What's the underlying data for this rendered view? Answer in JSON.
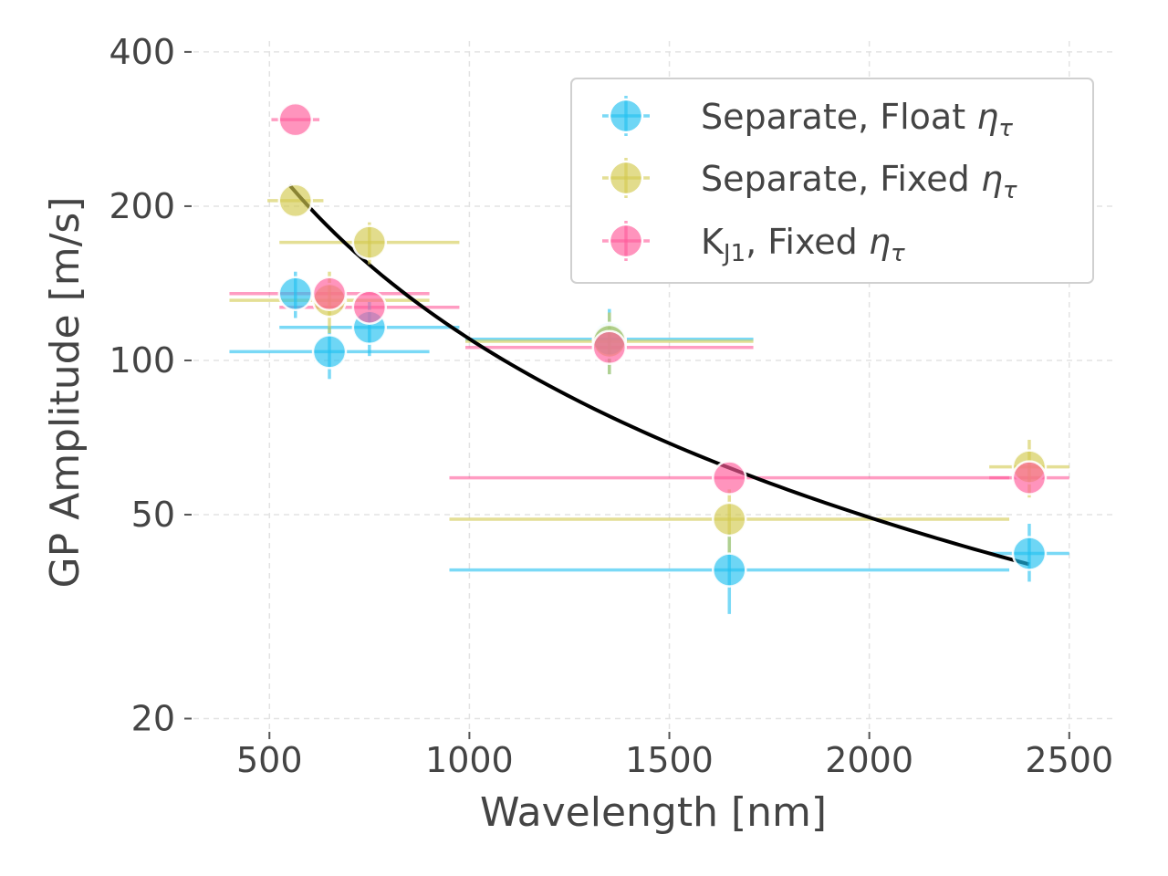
{
  "chart_data": {
    "type": "scatter",
    "title": "",
    "xlabel": "Wavelength [nm]",
    "ylabel": "GP Amplitude [m/s]",
    "xlim": [
      310,
      2610
    ],
    "ylim": [
      19,
      420
    ],
    "yscale": "log",
    "xticks": [
      500,
      1000,
      1500,
      2000,
      2500
    ],
    "xtick_labels": [
      "500",
      "1000",
      "1500",
      "2000",
      "2500"
    ],
    "yticks": [
      20,
      50,
      100,
      200,
      400
    ],
    "ytick_labels": [
      "20",
      "50",
      "100",
      "200",
      "400"
    ],
    "grid": true,
    "legend_position": "top-right",
    "series": [
      {
        "name": "Separate, Float",
        "symbol": "η",
        "subscript": "τ",
        "color": "#21c0f0",
        "points": [
          {
            "x": 565,
            "y": 135,
            "xerr": [
              0,
              0
            ],
            "yerr": [
              14,
              14
            ]
          },
          {
            "x": 650,
            "y": 104,
            "xerr": [
              250,
              250
            ],
            "yerr": [
              12,
              12
            ]
          },
          {
            "x": 750,
            "y": 116,
            "xerr": [
              225,
              225
            ],
            "yerr": [
              14,
              14
            ]
          },
          {
            "x": 1350,
            "y": 110,
            "xerr": [
              360,
              360
            ],
            "yerr": [
              16,
              16
            ]
          },
          {
            "x": 1650,
            "y": 39,
            "xerr": [
              700,
              700
            ],
            "yerr": [
              7,
              7
            ]
          },
          {
            "x": 2400,
            "y": 42,
            "xerr": [
              100,
              100
            ],
            "yerr": [
              5,
              6
            ]
          }
        ]
      },
      {
        "name": "Separate, Fixed",
        "symbol": "η",
        "subscript": "τ",
        "color": "#d2c94e",
        "points": [
          {
            "x": 565,
            "y": 205,
            "xerr": [
              70,
              70
            ],
            "yerr": [
              0,
              0
            ]
          },
          {
            "x": 650,
            "y": 131,
            "xerr": [
              250,
              250
            ],
            "yerr": [
              18,
              18
            ]
          },
          {
            "x": 750,
            "y": 170,
            "xerr": [
              225,
              225
            ],
            "yerr": [
              16,
              16
            ]
          },
          {
            "x": 1350,
            "y": 109,
            "xerr": [
              360,
              360
            ],
            "yerr": [
              15,
              15
            ]
          },
          {
            "x": 1650,
            "y": 49,
            "xerr": [
              700,
              700
            ],
            "yerr": [
              7,
              7
            ]
          },
          {
            "x": 2400,
            "y": 62,
            "xerr": [
              100,
              100
            ],
            "yerr": [
              8,
              8
            ]
          }
        ]
      },
      {
        "name": "K",
        "name_subscript": "J1",
        "name_suffix": ", Fixed",
        "symbol": "η",
        "subscript": "τ",
        "color": "#ff5a9a",
        "points": [
          {
            "x": 565,
            "y": 295,
            "xerr": [
              60,
              60
            ],
            "yerr": [
              0,
              0
            ]
          },
          {
            "x": 650,
            "y": 135,
            "xerr": [
              250,
              250
            ],
            "yerr": [
              0,
              0
            ]
          },
          {
            "x": 750,
            "y": 127,
            "xerr": [
              225,
              225
            ],
            "yerr": [
              0,
              0
            ]
          },
          {
            "x": 1350,
            "y": 106,
            "xerr": [
              360,
              360
            ],
            "yerr": [
              0,
              0
            ]
          },
          {
            "x": 1650,
            "y": 59,
            "xerr": [
              700,
              700
            ],
            "yerr": [
              0,
              0
            ]
          },
          {
            "x": 2400,
            "y": 59,
            "xerr": [
              100,
              100
            ],
            "yerr": [
              0,
              0
            ]
          }
        ]
      }
    ],
    "fit_curve": {
      "color": "#000000",
      "x_range": [
        550,
        2400
      ],
      "power_law_points": [
        [
          550,
          220
        ],
        [
          2400,
          40
        ]
      ]
    }
  }
}
